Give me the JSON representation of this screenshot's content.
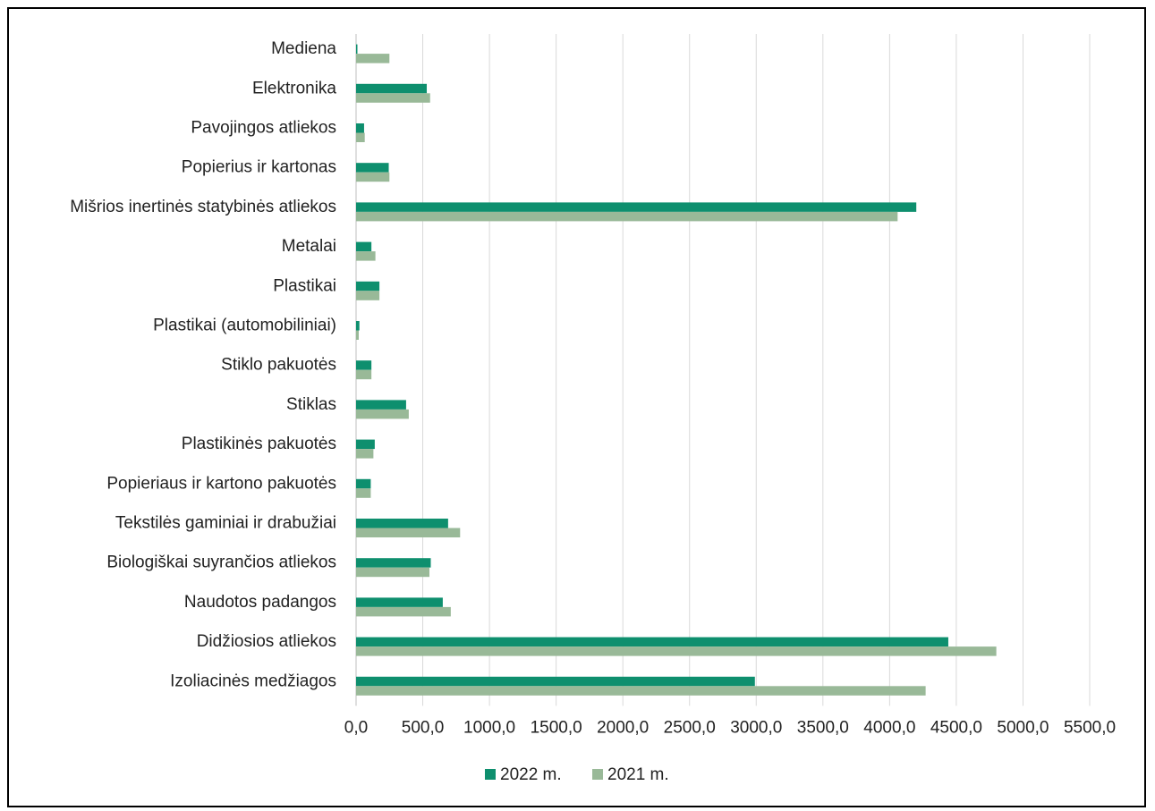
{
  "chart_data": {
    "type": "bar",
    "orientation": "horizontal",
    "categories": [
      "Mediena",
      "Elektronika",
      "Pavojingos atliekos",
      "Popierius ir kartonas",
      "Mišrios inertinės statybinės atliekos",
      "Metalai",
      "Plastikai",
      "Plastikai (automobiliniai)",
      "Stiklo pakuotės",
      "Stiklas",
      "Plastikinės pakuotės",
      "Popieriaus ir kartono pakuotės",
      "Tekstilės gaminiai ir drabužiai",
      "Biologiškai suyrančios atliekos",
      "Naudotos padangos",
      "Didžiosios atliekos",
      "Izoliacinės medžiagos"
    ],
    "series": [
      {
        "name": "2022 m.",
        "color": "#0e8f6e",
        "values": [
          10,
          530,
          60,
          245,
          4200,
          115,
          175,
          25,
          115,
          375,
          140,
          110,
          690,
          560,
          650,
          4440,
          2990
        ]
      },
      {
        "name": "2021 m.",
        "color": "#99b998",
        "values": [
          250,
          555,
          65,
          250,
          4060,
          145,
          175,
          20,
          115,
          395,
          130,
          110,
          780,
          550,
          710,
          4800,
          4270
        ]
      }
    ],
    "xlim": [
      0,
      5500
    ],
    "ticks": [
      "0,0",
      "500,0",
      "1000,0",
      "1500,0",
      "2000,0",
      "2500,0",
      "3000,0",
      "3500,0",
      "4000,0",
      "4500,0",
      "5000,0",
      "5500,0"
    ],
    "tick_values": [
      0,
      500,
      1000,
      1500,
      2000,
      2500,
      3000,
      3500,
      4000,
      4500,
      5000,
      5500
    ],
    "grid": true,
    "legend_position": "bottom",
    "title": "",
    "xlabel": "",
    "ylabel": ""
  }
}
